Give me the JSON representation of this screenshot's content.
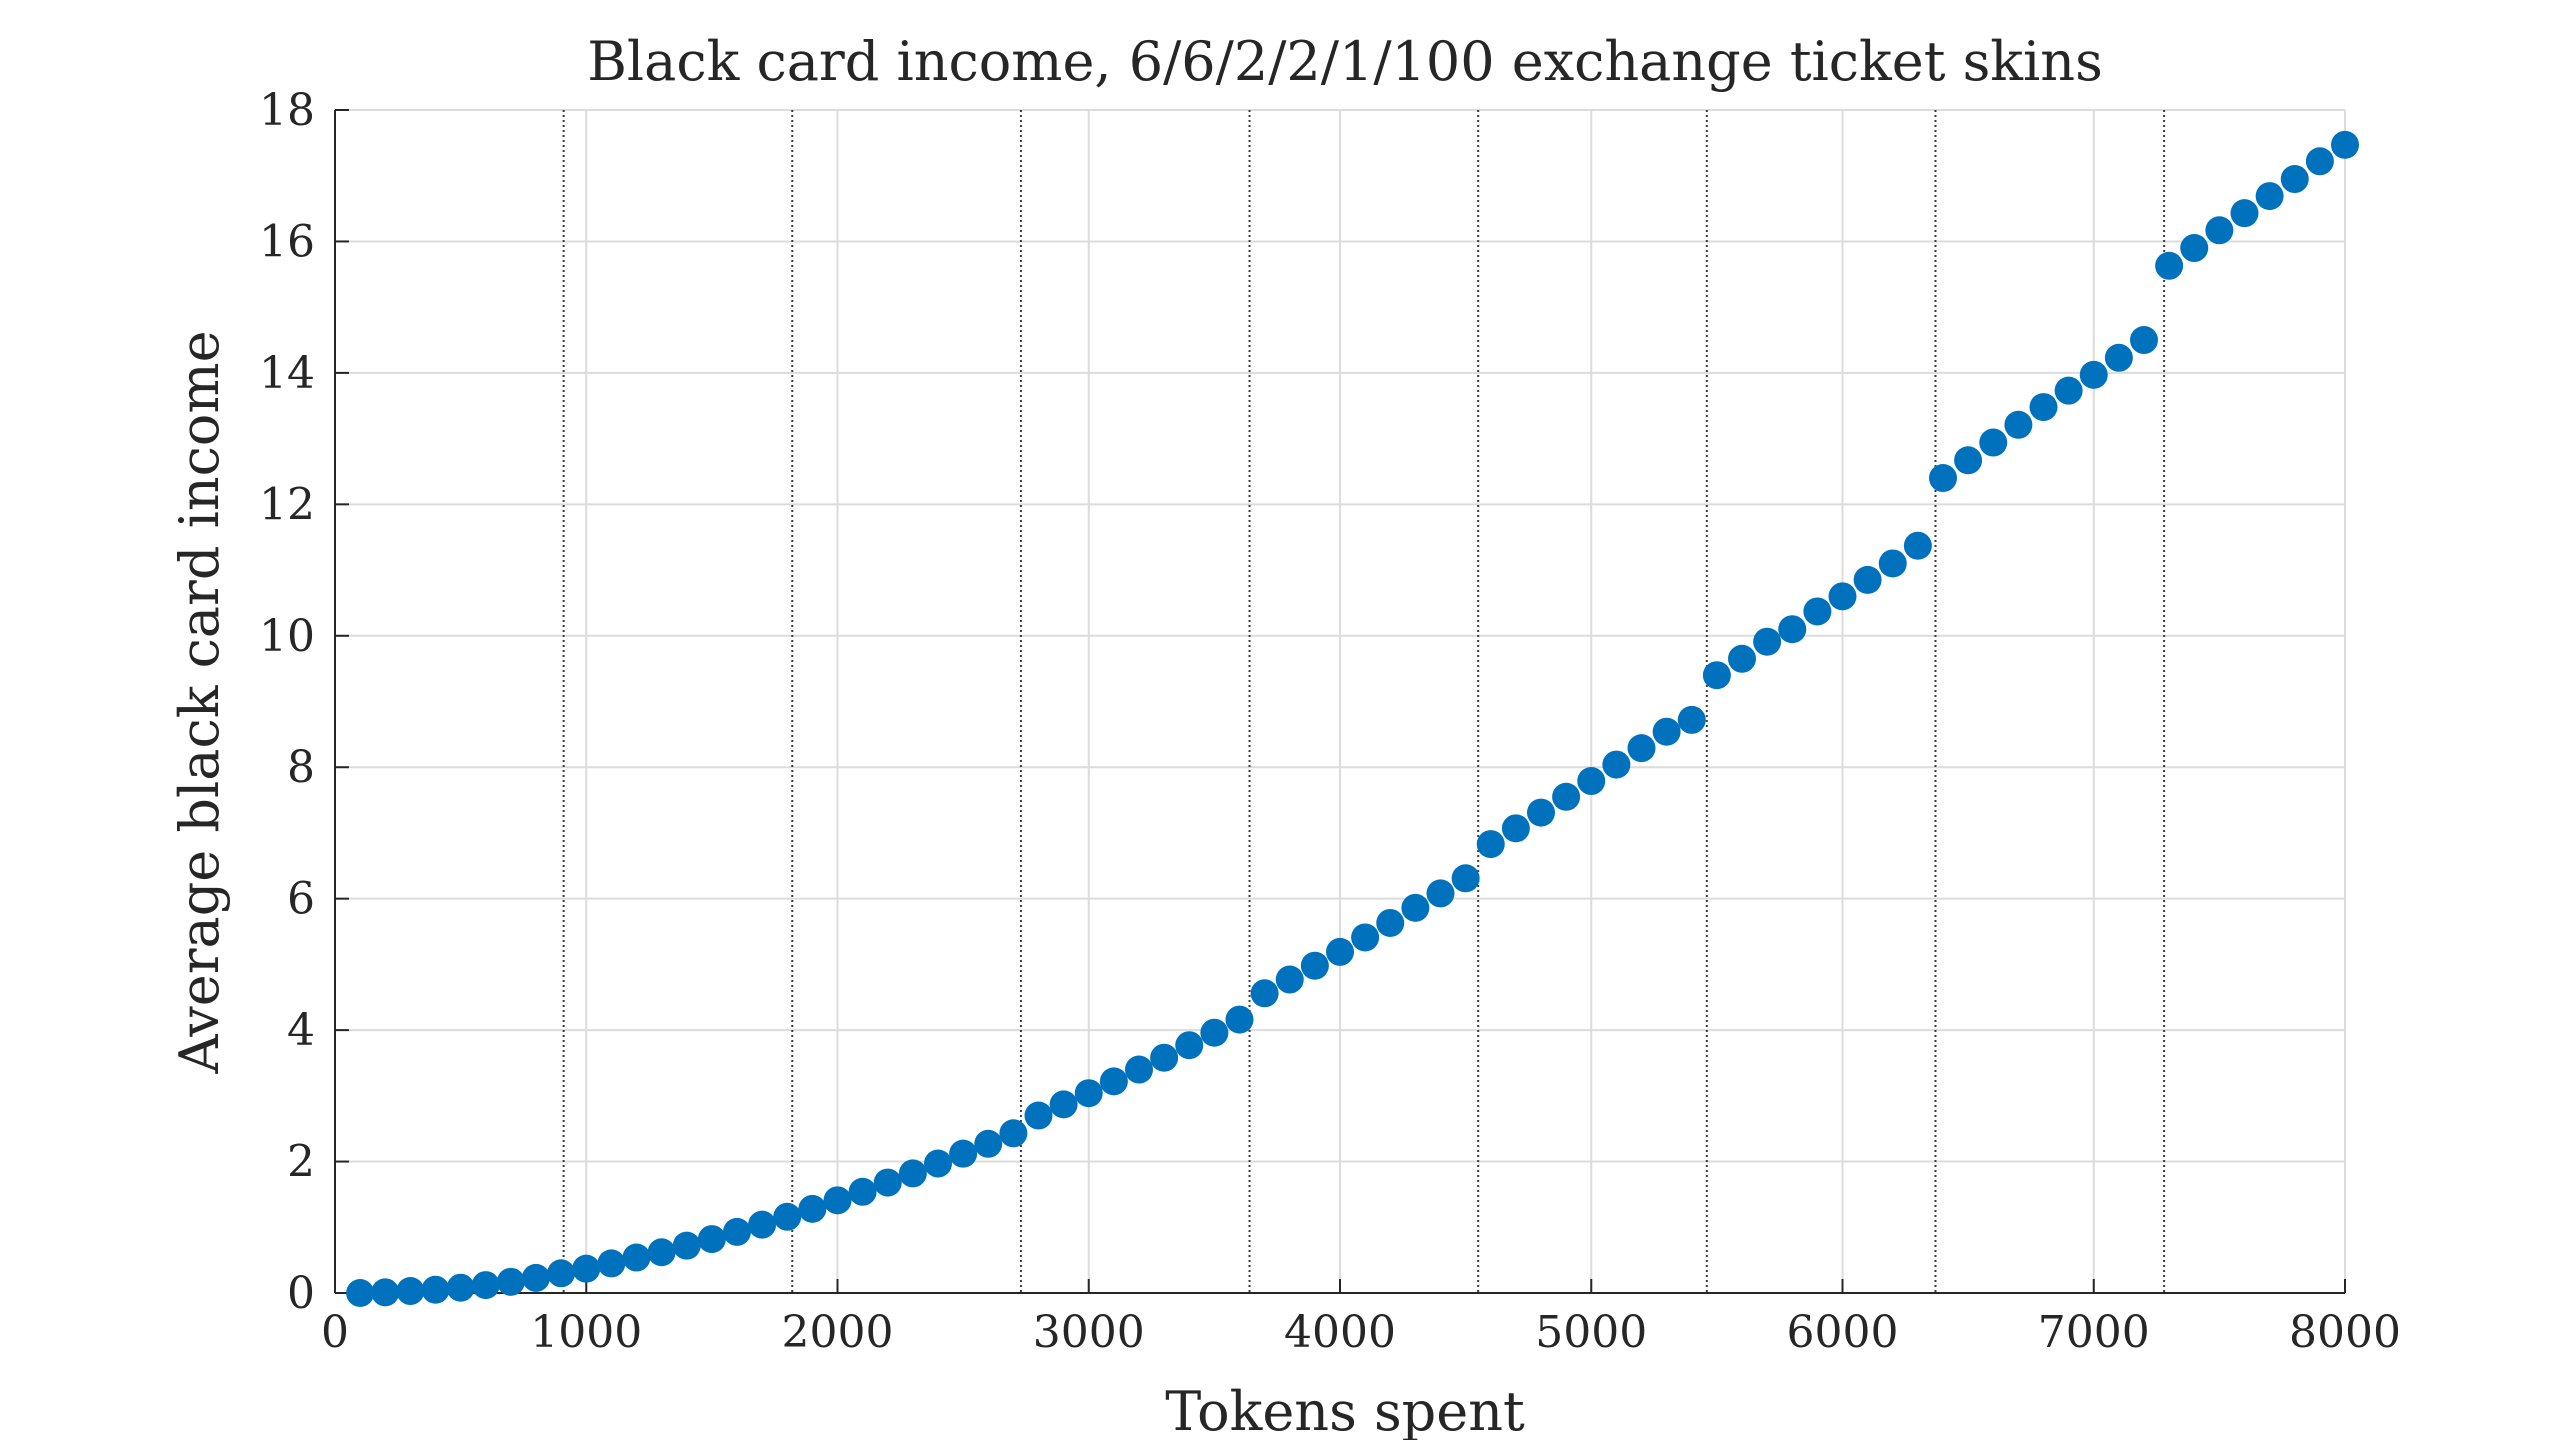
{
  "chart_data": {
    "type": "scatter",
    "title": "Black card income, 6/6/2/2/1/100 exchange ticket skins",
    "xlabel": "Tokens spent",
    "ylabel": "Average black card income",
    "xlim": [
      0,
      8000
    ],
    "ylim": [
      0,
      18
    ],
    "xticks": [
      0,
      1000,
      2000,
      3000,
      4000,
      5000,
      6000,
      7000,
      8000
    ],
    "yticks": [
      0,
      2,
      4,
      6,
      8,
      10,
      12,
      14,
      16,
      18
    ],
    "grid": true,
    "marker_color": "#0072BD",
    "vertical_lines": [
      910,
      1820,
      2730,
      3640,
      4550,
      5460,
      6370,
      7280
    ],
    "series": [
      {
        "x": [
          100,
          200,
          300,
          400,
          500,
          600,
          700,
          800,
          900,
          1000,
          1100,
          1200,
          1300,
          1400,
          1500,
          1600,
          1700,
          1800,
          1900,
          2000,
          2100,
          2200,
          2300,
          2400,
          2500,
          2600,
          2700,
          2800,
          2900,
          3000,
          3100,
          3200,
          3300,
          3400,
          3500,
          3600,
          3700,
          3800,
          3900,
          4000,
          4100,
          4200,
          4300,
          4400,
          4500,
          4600,
          4700,
          4800,
          4900,
          5000,
          5100,
          5200,
          5300,
          5400,
          5500,
          5600,
          5700,
          5800,
          5900,
          6000,
          6100,
          6200,
          6300,
          6400,
          6500,
          6600,
          6700,
          6800,
          6900,
          7000,
          7100,
          7200,
          7300,
          7400,
          7500,
          7600,
          7700,
          7800,
          7900,
          8000
        ],
        "values": [
          0.0,
          0.01,
          0.03,
          0.05,
          0.08,
          0.12,
          0.17,
          0.23,
          0.3,
          0.37,
          0.45,
          0.54,
          0.62,
          0.72,
          0.82,
          0.93,
          1.04,
          1.16,
          1.28,
          1.41,
          1.54,
          1.68,
          1.82,
          1.97,
          2.12,
          2.27,
          2.43,
          2.7,
          2.87,
          3.04,
          3.22,
          3.4,
          3.58,
          3.77,
          3.96,
          4.16,
          4.56,
          4.77,
          4.98,
          5.19,
          5.41,
          5.63,
          5.86,
          6.08,
          6.31,
          6.83,
          7.07,
          7.31,
          7.55,
          7.79,
          8.04,
          8.29,
          8.54,
          8.72,
          9.4,
          9.65,
          9.91,
          10.1,
          10.37,
          10.6,
          10.85,
          11.1,
          11.37,
          12.4,
          12.67,
          12.94,
          13.21,
          13.48,
          13.73,
          13.97,
          14.23,
          14.5,
          15.63,
          15.9,
          16.17,
          16.43,
          16.69,
          16.95,
          17.22,
          17.47
        ]
      }
    ]
  }
}
